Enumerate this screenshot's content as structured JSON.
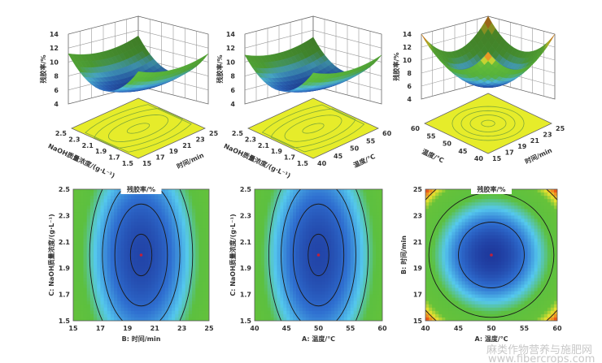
{
  "colormap": [
    "#1f3a9e",
    "#2f6fd0",
    "#55c8ee",
    "#5cc040",
    "#66c23a",
    "#e8e030",
    "#f08020",
    "#e02010"
  ],
  "watermark": {
    "line1": "麻类作物营养与施肥网",
    "line2": "www.fibercrops.com"
  },
  "chart_data": [
    {
      "type": "surface",
      "zlabel": "残胶率/%",
      "zlim": [
        4,
        14
      ],
      "zticks": [
        "4",
        "6",
        "8",
        "10",
        "12",
        "14"
      ],
      "left_axis": {
        "label": "NaOH质量浓度/(g·L⁻¹)",
        "range": [
          1.5,
          2.5
        ],
        "ticks": [
          "2.5",
          "2.3",
          "2.1",
          "1.9",
          "1.7",
          "1.5"
        ]
      },
      "right_axis": {
        "label": "时间/min",
        "range": [
          15,
          25
        ],
        "ticks": [
          "15",
          "17",
          "19",
          "21",
          "23",
          "25"
        ]
      },
      "surface": {
        "z_min": 6.2,
        "z_right_edge": 10.2,
        "z_left_edge": 7.2
      }
    },
    {
      "type": "surface",
      "zlabel": "残胶率/%",
      "zlim": [
        4,
        14
      ],
      "zticks": [
        "4",
        "6",
        "8",
        "10",
        "12",
        "14"
      ],
      "left_axis": {
        "label": "NaOH质量浓度/(g·L⁻¹)",
        "range": [
          1.5,
          2.5
        ],
        "ticks": [
          "2.5",
          "2.3",
          "2.1",
          "1.9",
          "1.7",
          "1.5"
        ]
      },
      "right_axis": {
        "label": "温度/℃",
        "range": [
          40,
          60
        ],
        "ticks": [
          "40",
          "45",
          "50",
          "55",
          "60"
        ]
      },
      "surface": {
        "z_min": 6.2,
        "z_right_edge": 10.0,
        "z_left_edge": 7.2
      }
    },
    {
      "type": "surface",
      "zlabel": "残胶率/%",
      "zlim": [
        4,
        14
      ],
      "zticks": [
        "4",
        "6",
        "8",
        "10",
        "12",
        "14"
      ],
      "left_axis": {
        "label": "温度/℃",
        "range": [
          40,
          60
        ],
        "ticks": [
          "60",
          "55",
          "50",
          "45",
          "40"
        ]
      },
      "right_axis": {
        "label": "时间/min",
        "range": [
          15,
          25
        ],
        "ticks": [
          "15",
          "17",
          "19",
          "21",
          "23",
          "25"
        ]
      },
      "surface": {
        "z_min": 6.0,
        "z_right_edge": 10.0,
        "z_left_edge": 10.0
      }
    },
    {
      "type": "contour",
      "title": "残胶率/%",
      "x": {
        "label": "B: 时间/min",
        "range": [
          15,
          25
        ],
        "ticks": [
          "15",
          "17",
          "19",
          "21",
          "23",
          "25"
        ]
      },
      "y": {
        "label": "C: NaOH质量浓度/(g·L⁻¹)",
        "range": [
          1.5,
          2.5
        ],
        "ticks": [
          "1.5",
          "1.7",
          "1.9",
          "2.1",
          "2.3",
          "2.5"
        ]
      },
      "surface": {
        "z_min": 6.2,
        "z_x_edge": 10.2,
        "z_y_edge": 7.2
      },
      "levels": [
        6.3,
        6.8,
        7.5,
        8.5
      ]
    },
    {
      "type": "contour",
      "title": "",
      "x": {
        "label": "A: 温度/℃",
        "range": [
          40,
          60
        ],
        "ticks": [
          "40",
          "45",
          "50",
          "55",
          "60"
        ]
      },
      "y": {
        "label": "C: NaOH质量浓度/(g·L⁻¹)",
        "range": [
          1.5,
          2.5
        ],
        "ticks": [
          "1.5",
          "1.7",
          "1.9",
          "2.1",
          "2.3",
          "2.5"
        ]
      },
      "surface": {
        "z_min": 6.2,
        "z_x_edge": 10.0,
        "z_y_edge": 7.2
      },
      "levels": [
        6.3,
        6.8,
        7.5,
        8.5
      ]
    },
    {
      "type": "contour",
      "title": "残胶率/%",
      "x": {
        "label": "A: 温度/℃",
        "range": [
          40,
          60
        ],
        "ticks": [
          "40",
          "45",
          "50",
          "55",
          "60"
        ]
      },
      "y": {
        "label": "B: 时间/min",
        "range": [
          15,
          25
        ],
        "ticks": [
          "15",
          "17",
          "19",
          "21",
          "23",
          "25"
        ]
      },
      "surface": {
        "z_min": 6.0,
        "z_x_edge": 10.0,
        "z_y_edge": 10.0
      },
      "levels": [
        7.0,
        9.6,
        12.8
      ]
    }
  ]
}
